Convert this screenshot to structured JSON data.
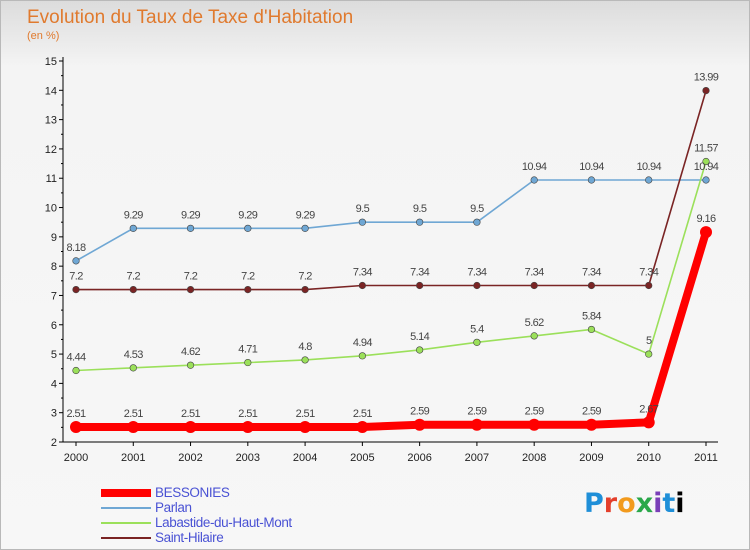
{
  "header": {
    "title": "Evolution du Taux de Taxe d'Habitation",
    "subtitle": "(en %)"
  },
  "logo": {
    "text": "Proxiti"
  },
  "chart_data": {
    "type": "line",
    "title": "Evolution du Taux de Taxe d'Habitation",
    "subtitle": "(en %)",
    "xlabel": "",
    "ylabel": "",
    "ylim": [
      2,
      15
    ],
    "yticks": [
      2,
      3,
      4,
      5,
      6,
      7,
      8,
      9,
      10,
      11,
      12,
      13,
      14,
      15
    ],
    "categories": [
      "2000",
      "2001",
      "2002",
      "2003",
      "2004",
      "2005",
      "2006",
      "2007",
      "2008",
      "2009",
      "2010",
      "2011"
    ],
    "legend_position": "bottom-left",
    "grid": false,
    "series": [
      {
        "name": "BESSONIES",
        "color": "#ff0000",
        "values": [
          2.51,
          2.51,
          2.51,
          2.51,
          2.51,
          2.51,
          2.59,
          2.59,
          2.59,
          2.59,
          2.67,
          9.16
        ],
        "labels": [
          "2.51",
          "2.51",
          "2.51",
          "2.51",
          "2.51",
          "2.51",
          "2.59",
          "2.59",
          "2.59",
          "2.59",
          "2.67",
          "9.16"
        ]
      },
      {
        "name": "Parlan",
        "color": "#6fa7d4",
        "values": [
          8.18,
          9.29,
          9.29,
          9.29,
          9.29,
          9.5,
          9.5,
          9.5,
          10.94,
          10.94,
          10.94,
          10.94
        ],
        "labels": [
          "8.18",
          "9.29",
          "9.29",
          "9.29",
          "9.29",
          "9.5",
          "9.5",
          "9.5",
          "10.94",
          "10.94",
          "10.94",
          "10.94"
        ]
      },
      {
        "name": "Labastide-du-Haut-Mont",
        "color": "#9be05a",
        "values": [
          4.44,
          4.53,
          4.62,
          4.71,
          4.8,
          4.94,
          5.14,
          5.4,
          5.62,
          5.84,
          5.0,
          11.57
        ],
        "labels": [
          "4.44",
          "4.53",
          "4.62",
          "4.71",
          "4.8",
          "4.94",
          "5.14",
          "5.4",
          "5.62",
          "5.84",
          "5",
          "11.57"
        ]
      },
      {
        "name": "Saint-Hilaire",
        "color": "#7a2424",
        "values": [
          7.2,
          7.2,
          7.2,
          7.2,
          7.2,
          7.34,
          7.34,
          7.34,
          7.34,
          7.34,
          7.34,
          13.99
        ],
        "labels": [
          "7.2",
          "7.2",
          "7.2",
          "7.2",
          "7.2",
          "7.34",
          "7.34",
          "7.34",
          "7.34",
          "7.34",
          "7.34",
          "13.99"
        ]
      }
    ]
  }
}
